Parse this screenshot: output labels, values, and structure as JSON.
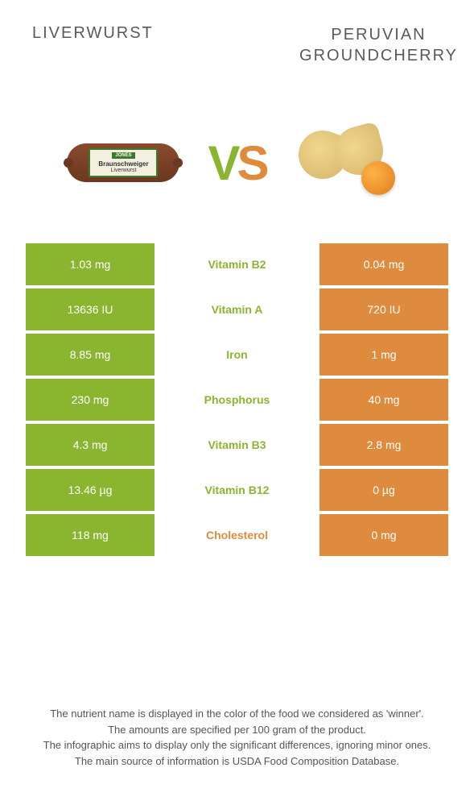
{
  "colors": {
    "left_accent": "#8ab52f",
    "right_accent": "#df8b3d",
    "text_gray": "#595959",
    "background": "#ffffff",
    "footer_text": "#555555"
  },
  "typography": {
    "header_fontsize": 20,
    "vs_fontsize": 60,
    "cell_fontsize": 14,
    "footer_fontsize": 13
  },
  "header": {
    "left": "LIVERWURST",
    "right_line1": "PERUVIAN",
    "right_line2": "GROUNDCHERRY"
  },
  "vs": {
    "v": "V",
    "s": "S"
  },
  "product_label": {
    "brand": "JONES",
    "name": "Braunschweiger",
    "sub": "Liverwurst"
  },
  "rows": [
    {
      "left": "1.03 mg",
      "label": "Vitamin B2",
      "right": "0.04 mg",
      "winner": "left"
    },
    {
      "left": "13636 IU",
      "label": "Vitamin A",
      "right": "720 IU",
      "winner": "left"
    },
    {
      "left": "8.85 mg",
      "label": "Iron",
      "right": "1 mg",
      "winner": "left"
    },
    {
      "left": "230 mg",
      "label": "Phosphorus",
      "right": "40 mg",
      "winner": "left"
    },
    {
      "left": "4.3 mg",
      "label": "Vitamin B3",
      "right": "2.8 mg",
      "winner": "left"
    },
    {
      "left": "13.46 µg",
      "label": "Vitamin B12",
      "right": "0 µg",
      "winner": "left"
    },
    {
      "left": "118 mg",
      "label": "Cholesterol",
      "right": "0 mg",
      "winner": "right"
    }
  ],
  "footer": {
    "line1": "The nutrient name is displayed in the color of the food we considered as 'winner'.",
    "line2": "The amounts are specified per 100 gram of the product.",
    "line3": "The infographic aims to display only the significant differences, ignoring minor ones.",
    "line4": "The main source of information is USDA Food Composition Database."
  }
}
